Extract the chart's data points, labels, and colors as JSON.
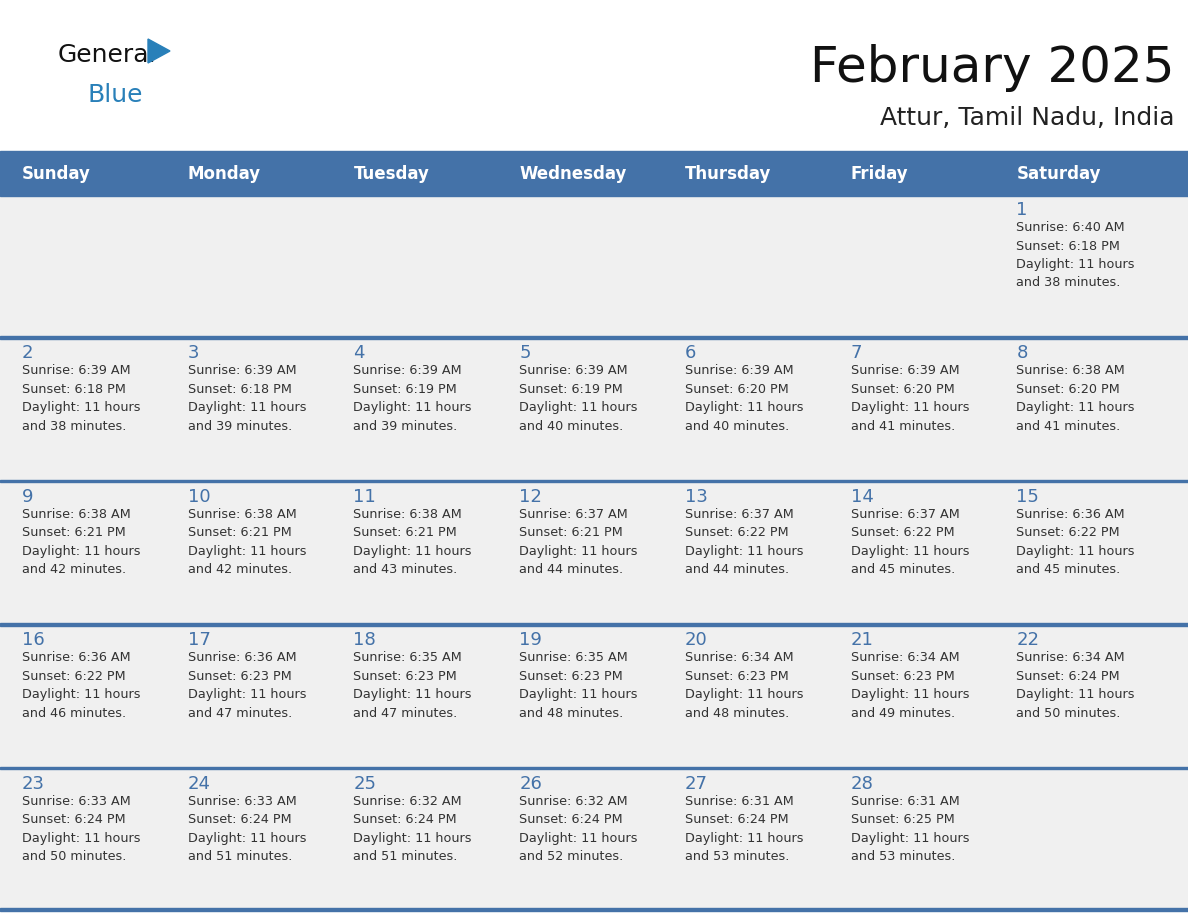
{
  "title": "February 2025",
  "subtitle": "Attur, Tamil Nadu, India",
  "days_of_week": [
    "Sunday",
    "Monday",
    "Tuesday",
    "Wednesday",
    "Thursday",
    "Friday",
    "Saturday"
  ],
  "header_bg": "#4472A8",
  "header_text": "#FFFFFF",
  "row_bg": "#F0F0F0",
  "divider_color": "#4472A8",
  "day_number_color": "#4472A8",
  "text_color": "#333333",
  "logo_general_color": "#1a1a1a",
  "logo_blue_color": "#2980b9",
  "calendar_data": [
    {
      "day": 1,
      "col": 6,
      "row": 0,
      "sunrise": "6:40 AM",
      "sunset": "6:18 PM",
      "daylight": "11 hours\nand 38 minutes."
    },
    {
      "day": 2,
      "col": 0,
      "row": 1,
      "sunrise": "6:39 AM",
      "sunset": "6:18 PM",
      "daylight": "11 hours\nand 38 minutes."
    },
    {
      "day": 3,
      "col": 1,
      "row": 1,
      "sunrise": "6:39 AM",
      "sunset": "6:18 PM",
      "daylight": "11 hours\nand 39 minutes."
    },
    {
      "day": 4,
      "col": 2,
      "row": 1,
      "sunrise": "6:39 AM",
      "sunset": "6:19 PM",
      "daylight": "11 hours\nand 39 minutes."
    },
    {
      "day": 5,
      "col": 3,
      "row": 1,
      "sunrise": "6:39 AM",
      "sunset": "6:19 PM",
      "daylight": "11 hours\nand 40 minutes."
    },
    {
      "day": 6,
      "col": 4,
      "row": 1,
      "sunrise": "6:39 AM",
      "sunset": "6:20 PM",
      "daylight": "11 hours\nand 40 minutes."
    },
    {
      "day": 7,
      "col": 5,
      "row": 1,
      "sunrise": "6:39 AM",
      "sunset": "6:20 PM",
      "daylight": "11 hours\nand 41 minutes."
    },
    {
      "day": 8,
      "col": 6,
      "row": 1,
      "sunrise": "6:38 AM",
      "sunset": "6:20 PM",
      "daylight": "11 hours\nand 41 minutes."
    },
    {
      "day": 9,
      "col": 0,
      "row": 2,
      "sunrise": "6:38 AM",
      "sunset": "6:21 PM",
      "daylight": "11 hours\nand 42 minutes."
    },
    {
      "day": 10,
      "col": 1,
      "row": 2,
      "sunrise": "6:38 AM",
      "sunset": "6:21 PM",
      "daylight": "11 hours\nand 42 minutes."
    },
    {
      "day": 11,
      "col": 2,
      "row": 2,
      "sunrise": "6:38 AM",
      "sunset": "6:21 PM",
      "daylight": "11 hours\nand 43 minutes."
    },
    {
      "day": 12,
      "col": 3,
      "row": 2,
      "sunrise": "6:37 AM",
      "sunset": "6:21 PM",
      "daylight": "11 hours\nand 44 minutes."
    },
    {
      "day": 13,
      "col": 4,
      "row": 2,
      "sunrise": "6:37 AM",
      "sunset": "6:22 PM",
      "daylight": "11 hours\nand 44 minutes."
    },
    {
      "day": 14,
      "col": 5,
      "row": 2,
      "sunrise": "6:37 AM",
      "sunset": "6:22 PM",
      "daylight": "11 hours\nand 45 minutes."
    },
    {
      "day": 15,
      "col": 6,
      "row": 2,
      "sunrise": "6:36 AM",
      "sunset": "6:22 PM",
      "daylight": "11 hours\nand 45 minutes."
    },
    {
      "day": 16,
      "col": 0,
      "row": 3,
      "sunrise": "6:36 AM",
      "sunset": "6:22 PM",
      "daylight": "11 hours\nand 46 minutes."
    },
    {
      "day": 17,
      "col": 1,
      "row": 3,
      "sunrise": "6:36 AM",
      "sunset": "6:23 PM",
      "daylight": "11 hours\nand 47 minutes."
    },
    {
      "day": 18,
      "col": 2,
      "row": 3,
      "sunrise": "6:35 AM",
      "sunset": "6:23 PM",
      "daylight": "11 hours\nand 47 minutes."
    },
    {
      "day": 19,
      "col": 3,
      "row": 3,
      "sunrise": "6:35 AM",
      "sunset": "6:23 PM",
      "daylight": "11 hours\nand 48 minutes."
    },
    {
      "day": 20,
      "col": 4,
      "row": 3,
      "sunrise": "6:34 AM",
      "sunset": "6:23 PM",
      "daylight": "11 hours\nand 48 minutes."
    },
    {
      "day": 21,
      "col": 5,
      "row": 3,
      "sunrise": "6:34 AM",
      "sunset": "6:23 PM",
      "daylight": "11 hours\nand 49 minutes."
    },
    {
      "day": 22,
      "col": 6,
      "row": 3,
      "sunrise": "6:34 AM",
      "sunset": "6:24 PM",
      "daylight": "11 hours\nand 50 minutes."
    },
    {
      "day": 23,
      "col": 0,
      "row": 4,
      "sunrise": "6:33 AM",
      "sunset": "6:24 PM",
      "daylight": "11 hours\nand 50 minutes."
    },
    {
      "day": 24,
      "col": 1,
      "row": 4,
      "sunrise": "6:33 AM",
      "sunset": "6:24 PM",
      "daylight": "11 hours\nand 51 minutes."
    },
    {
      "day": 25,
      "col": 2,
      "row": 4,
      "sunrise": "6:32 AM",
      "sunset": "6:24 PM",
      "daylight": "11 hours\nand 51 minutes."
    },
    {
      "day": 26,
      "col": 3,
      "row": 4,
      "sunrise": "6:32 AM",
      "sunset": "6:24 PM",
      "daylight": "11 hours\nand 52 minutes."
    },
    {
      "day": 27,
      "col": 4,
      "row": 4,
      "sunrise": "6:31 AM",
      "sunset": "6:24 PM",
      "daylight": "11 hours\nand 53 minutes."
    },
    {
      "day": 28,
      "col": 5,
      "row": 4,
      "sunrise": "6:31 AM",
      "sunset": "6:25 PM",
      "daylight": "11 hours\nand 53 minutes."
    }
  ],
  "num_rows": 5,
  "num_cols": 7
}
